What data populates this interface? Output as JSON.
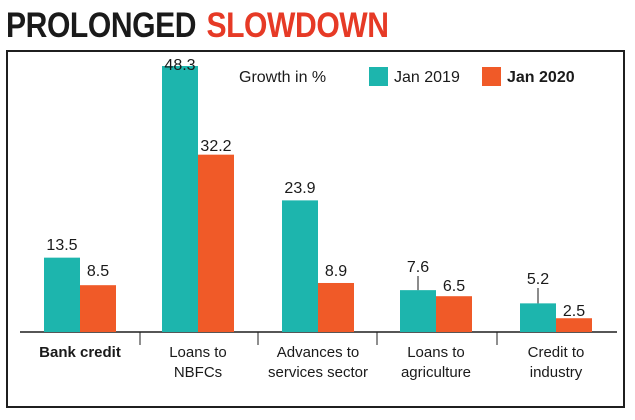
{
  "title": {
    "part1": "PROLONGED",
    "part2": "SLOWDOWN"
  },
  "colors": {
    "jan2019": "#1db5ad",
    "jan2020": "#f05a28",
    "title_accent": "#e63a26",
    "text": "#1a1a1a",
    "frame": "#1f1f1f"
  },
  "chart_data": {
    "type": "bar",
    "title": "PROLONGED SLOWDOWN",
    "ylabel": "Growth in %",
    "categories": [
      [
        "Bank credit"
      ],
      [
        "Loans to",
        "NBFCs"
      ],
      [
        "Advances to",
        "services sector"
      ],
      [
        "Loans to",
        "agriculture"
      ],
      [
        "Credit to",
        "industry"
      ]
    ],
    "category_bold": [
      true,
      false,
      false,
      false,
      false
    ],
    "series": [
      {
        "name": "Jan 2019",
        "values": [
          13.5,
          48.3,
          23.9,
          7.6,
          5.2
        ]
      },
      {
        "name": "Jan 2020",
        "values": [
          8.5,
          32.2,
          8.9,
          6.5,
          2.5
        ]
      }
    ],
    "value_labels": [
      [
        "13.5",
        "48.3",
        "23.9",
        "7.6",
        "5.2"
      ],
      [
        "8.5",
        "32.2",
        "8.9",
        "6.5",
        "2.5"
      ]
    ],
    "ylim": [
      0,
      48.3
    ],
    "legend_position": "top-right",
    "grid": false
  }
}
